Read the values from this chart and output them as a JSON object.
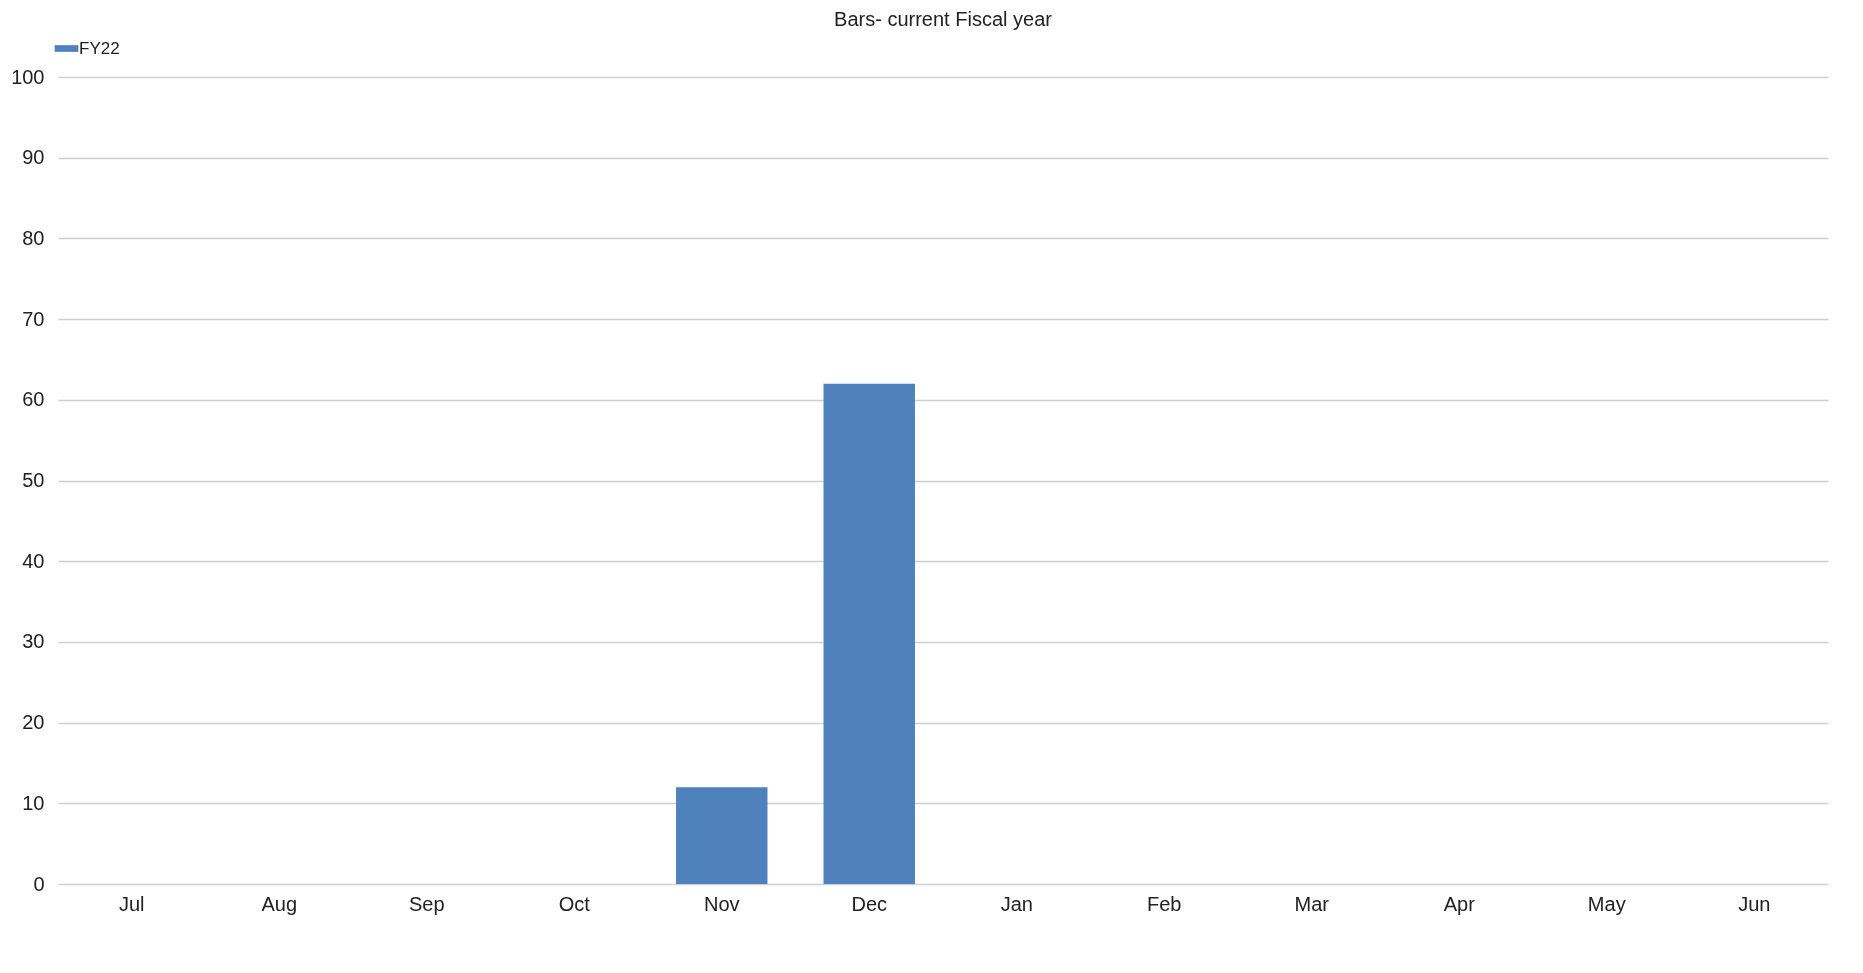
{
  "chart_data": {
    "type": "bar",
    "title": "Bars- current Fiscal year",
    "categories": [
      "Jul",
      "Aug",
      "Sep",
      "Oct",
      "Nov",
      "Dec",
      "Jan",
      "Feb",
      "Mar",
      "Apr",
      "May",
      "Jun"
    ],
    "series": [
      {
        "name": "FY22",
        "color": "#4f81bd",
        "values": [
          null,
          null,
          null,
          null,
          12,
          62,
          null,
          null,
          null,
          null,
          null,
          null
        ]
      }
    ],
    "ylim": [
      0,
      100
    ],
    "yticks": [
      0,
      10,
      20,
      30,
      40,
      50,
      60,
      70,
      80,
      90,
      100
    ],
    "grid": "y",
    "legend": "top"
  }
}
